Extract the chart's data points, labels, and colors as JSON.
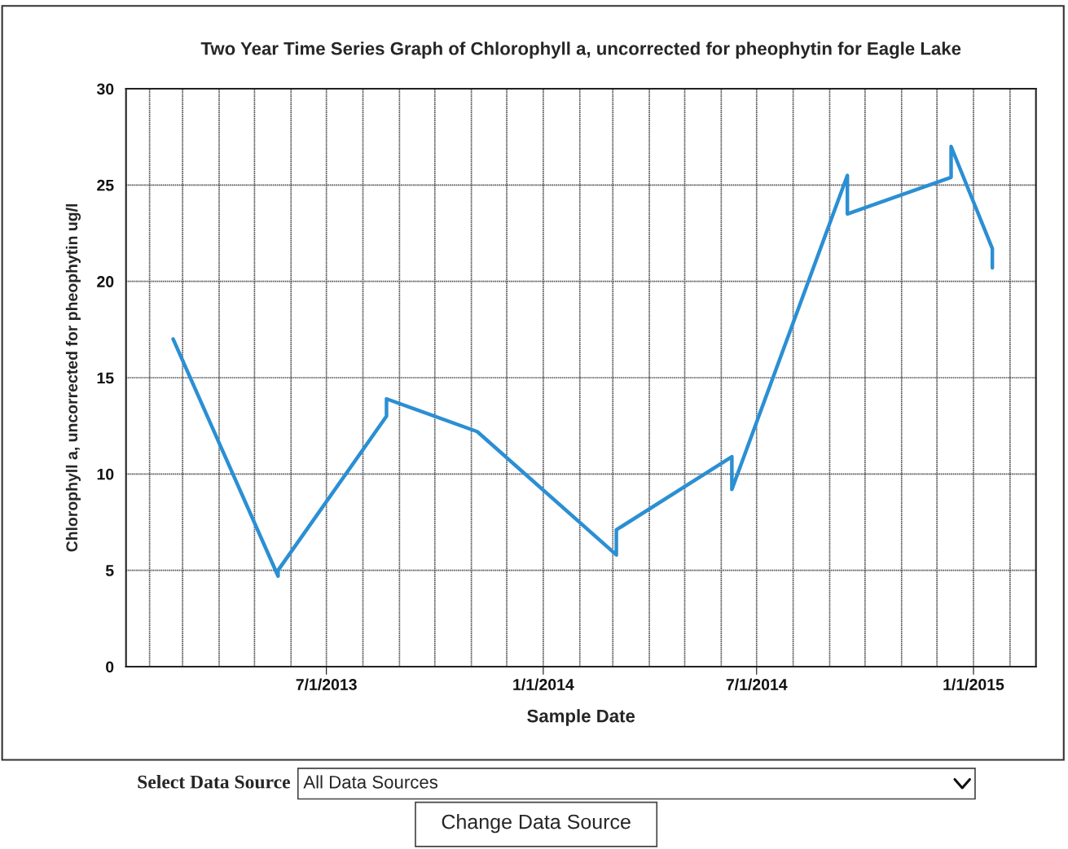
{
  "chart_data": {
    "type": "line",
    "title": "Two Year Time Series Graph of Chlorophyll a, uncorrected for pheophytin for Eagle Lake",
    "xlabel": "Sample Date",
    "ylabel": "Chlorophyll a, uncorrected for pheophytin ug/l",
    "x": [
      "2013-02-21",
      "2013-05-21",
      "2013-05-21",
      "2013-08-21",
      "2013-08-21",
      "2013-11-06",
      "2014-03-04",
      "2014-03-04",
      "2014-06-10",
      "2014-06-10",
      "2014-09-16",
      "2014-09-16",
      "2014-12-13",
      "2014-12-13",
      "2015-01-17",
      "2015-01-17"
    ],
    "series": [
      {
        "color": "#2b8fd3",
        "values": [
          17.0,
          4.7,
          5.0,
          13.0,
          13.9,
          12.2,
          5.8,
          7.1,
          10.9,
          9.2,
          25.5,
          23.5,
          25.4,
          27.0,
          21.7,
          20.7
        ]
      }
    ],
    "xlim": [
      "2013-01-12",
      "2015-02-23"
    ],
    "xticks": [
      {
        "value": "2013-02-01",
        "label": null
      },
      {
        "value": "2013-03-01",
        "label": null
      },
      {
        "value": "2013-04-01",
        "label": null
      },
      {
        "value": "2013-05-01",
        "label": null
      },
      {
        "value": "2013-06-01",
        "label": null
      },
      {
        "value": "2013-07-01",
        "label": "7/1/2013"
      },
      {
        "value": "2013-08-01",
        "label": null
      },
      {
        "value": "2013-09-01",
        "label": null
      },
      {
        "value": "2013-10-01",
        "label": null
      },
      {
        "value": "2013-11-01",
        "label": null
      },
      {
        "value": "2013-12-01",
        "label": null
      },
      {
        "value": "2014-01-01",
        "label": "1/1/2014"
      },
      {
        "value": "2014-02-01",
        "label": null
      },
      {
        "value": "2014-03-01",
        "label": null
      },
      {
        "value": "2014-04-01",
        "label": null
      },
      {
        "value": "2014-05-01",
        "label": null
      },
      {
        "value": "2014-06-01",
        "label": null
      },
      {
        "value": "2014-07-01",
        "label": "7/1/2014"
      },
      {
        "value": "2014-08-01",
        "label": null
      },
      {
        "value": "2014-09-01",
        "label": null
      },
      {
        "value": "2014-10-01",
        "label": null
      },
      {
        "value": "2014-11-01",
        "label": null
      },
      {
        "value": "2014-12-01",
        "label": null
      },
      {
        "value": "2015-01-01",
        "label": "1/1/2015"
      },
      {
        "value": "2015-02-01",
        "label": null
      }
    ],
    "ylim": [
      0,
      30
    ],
    "yticks": [
      0,
      5,
      10,
      15,
      20,
      25,
      30
    ],
    "grid": true,
    "legend": false,
    "marker": "none",
    "line_style": "solid",
    "annotations": [
      "Select Data Source",
      "All Data Sources",
      "Change Data Source"
    ]
  }
}
